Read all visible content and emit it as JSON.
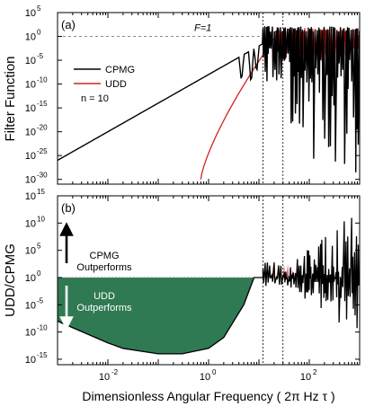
{
  "chart_data": [
    {
      "panel": "top",
      "type": "line",
      "panel_label": "(a)",
      "ylabel": "Filter Function",
      "x_scale": "log",
      "y_scale": "log",
      "xlim": [
        0.001,
        1000
      ],
      "ylim": [
        1e-31,
        100000.0
      ],
      "yticks": [
        {
          "base": "10",
          "exp": "5",
          "value": 100000.0
        },
        {
          "base": "10",
          "exp": "0",
          "value": 1
        },
        {
          "base": "10",
          "exp": "-5",
          "value": 1e-05
        },
        {
          "base": "10",
          "exp": "-10",
          "value": 1e-10
        },
        {
          "base": "10",
          "exp": "-15",
          "value": 1e-15
        },
        {
          "base": "10",
          "exp": "-20",
          "value": 1e-20
        },
        {
          "base": "10",
          "exp": "-25",
          "value": 1e-25
        },
        {
          "base": "10",
          "exp": "-30",
          "value": 1e-30
        }
      ],
      "reference_line": {
        "label": "F=1",
        "value": 1
      },
      "vertical_markers": [
        12,
        30
      ],
      "legend": {
        "position": "left",
        "note": "n = 10"
      },
      "series": [
        {
          "name": "CPMG",
          "color": "#000000",
          "points": [
            [
              0.001,
              1e-26
            ],
            [
              0.01,
              1e-20
            ],
            [
              0.1,
              1e-14
            ],
            [
              1,
              1e-08
            ],
            [
              4,
              5e-05
            ],
            [
              7,
              0.01
            ],
            [
              9,
              0.2
            ],
            [
              12,
              1
            ],
            [
              20,
              5
            ],
            [
              30,
              10
            ],
            [
              100,
              10
            ],
            [
              1000,
              10
            ]
          ]
        },
        {
          "name": "UDD",
          "color": "#d62020",
          "points": [
            [
              0.7,
              1e-30
            ],
            [
              1,
              1e-26
            ],
            [
              2,
              1e-20
            ],
            [
              5,
              1e-12
            ],
            [
              10,
              1e-05
            ],
            [
              15,
              0.1
            ],
            [
              25,
              10
            ],
            [
              100,
              10
            ],
            [
              1000,
              10
            ]
          ]
        }
      ]
    },
    {
      "panel": "bottom",
      "type": "area",
      "panel_label": "(b)",
      "ylabel": "UDD/CPMG",
      "xlabel": "Dimensionless Angular Frequency ( 2π Hz τ )",
      "x_scale": "log",
      "y_scale": "log",
      "xlim": [
        0.001,
        1000
      ],
      "ylim": [
        1e-16,
        1000000000000000.0
      ],
      "xticks": [
        {
          "base": "10",
          "exp": "-2",
          "value": 0.01
        },
        {
          "base": "10",
          "exp": "0",
          "value": 1
        },
        {
          "base": "10",
          "exp": "2",
          "value": 100
        }
      ],
      "yticks": [
        {
          "base": "10",
          "exp": "15",
          "value": 1000000000000000.0
        },
        {
          "base": "10",
          "exp": "10",
          "value": 10000000000.0
        },
        {
          "base": "10",
          "exp": "5",
          "value": 100000.0
        },
        {
          "base": "10",
          "exp": "0",
          "value": 1
        },
        {
          "base": "10",
          "exp": "-5",
          "value": 1e-05
        },
        {
          "base": "10",
          "exp": "-10",
          "value": 1e-10
        },
        {
          "base": "10",
          "exp": "-15",
          "value": 1e-15
        }
      ],
      "vertical_markers": [
        12,
        30
      ],
      "annotations": {
        "cpmg_line1": "CPMG",
        "cpmg_line2": "Outperforms",
        "udd_line1": "UDD",
        "udd_line2": "Outperforms"
      },
      "fill_color": "#2f7a52",
      "ratio_points": [
        [
          0.001,
          1e-08
        ],
        [
          0.01,
          1e-12
        ],
        [
          0.02,
          1e-13
        ],
        [
          0.1,
          1e-14
        ],
        [
          0.3,
          1e-14
        ],
        [
          1,
          1e-13
        ],
        [
          2,
          1e-11
        ],
        [
          5,
          1e-05
        ],
        [
          8,
          1
        ],
        [
          12,
          1
        ],
        [
          30,
          1
        ],
        [
          1000,
          1
        ]
      ]
    }
  ]
}
